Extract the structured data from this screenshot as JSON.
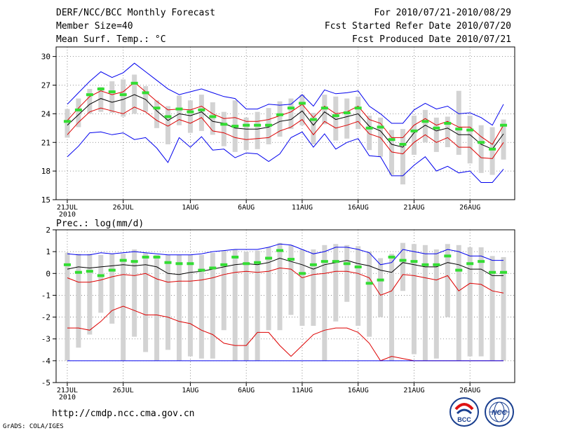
{
  "header": {
    "title": "DERF/NCC/BCC Monthly Forecast",
    "member_size": "Member Size=40",
    "variable1": "Mean Surf. Temp.: °C",
    "forecast_range": "For 2010/07/21-2010/08/29",
    "started_date": "Fcst Started Refer Date 2010/07/20",
    "produced_date": "Fcst Produced Date 2010/07/21"
  },
  "footer": {
    "url": "http://cmdp.ncc.cma.gov.cn",
    "grads_credit": "GrADS: COLA/IGES",
    "logo_left_text": "BCC",
    "logo_right_text": "NCC"
  },
  "colors": {
    "box": "#d3d3d3",
    "obs": "#33dd33",
    "blue": "#0000ee",
    "red": "#dd0000",
    "mean": "#000000",
    "grid": "#777777"
  },
  "chart_data": [
    {
      "type": "line",
      "title": "Mean Surf. Temp.: °C",
      "xlabel": "",
      "ylabel": "°C",
      "ylim": [
        15,
        31
      ],
      "yticks": [
        15,
        18,
        21,
        24,
        27,
        30
      ],
      "x_tick_labels": [
        "21JUL",
        "26JUL",
        "1AUG",
        "6AUG",
        "11AUG",
        "16AUG",
        "21AUG",
        "26AUG"
      ],
      "x_tick_index": [
        0,
        5,
        11,
        16,
        21,
        26,
        31,
        36
      ],
      "year_label": "2010",
      "n_days": 40,
      "grid": true,
      "series": [
        {
          "name": "max",
          "color": "blue",
          "values": [
            25.0,
            26.2,
            27.4,
            28.4,
            27.8,
            28.3,
            29.3,
            28.4,
            27.5,
            26.6,
            26.0,
            26.3,
            26.6,
            26.2,
            25.8,
            25.6,
            24.5,
            24.5,
            25.0,
            24.9,
            25.0,
            26.0,
            24.8,
            26.5,
            26.1,
            26.2,
            26.4,
            24.8,
            24.0,
            23.0,
            23.0,
            24.4,
            25.1,
            24.5,
            24.8,
            24.0,
            24.1,
            23.6,
            22.8,
            25.0
          ]
        },
        {
          "name": "p90",
          "color": "red",
          "values": [
            23.3,
            24.6,
            25.8,
            26.4,
            26.0,
            26.3,
            27.3,
            26.3,
            25.3,
            24.4,
            24.5,
            24.4,
            24.8,
            24.0,
            23.5,
            23.6,
            23.2,
            23.2,
            23.4,
            23.8,
            24.2,
            25.0,
            23.6,
            24.8,
            24.0,
            24.2,
            24.8,
            23.4,
            23.0,
            21.5,
            21.5,
            22.8,
            23.5,
            22.8,
            23.2,
            22.6,
            22.6,
            21.6,
            20.8,
            22.8
          ]
        },
        {
          "name": "mean",
          "color": "mean",
          "values": [
            22.8,
            23.9,
            25.0,
            25.6,
            25.2,
            25.5,
            26.0,
            25.5,
            24.3,
            23.3,
            24.0,
            23.8,
            24.2,
            23.2,
            23.0,
            22.5,
            22.4,
            22.4,
            22.6,
            23.2,
            23.4,
            24.3,
            22.8,
            24.2,
            23.4,
            23.7,
            24.0,
            22.7,
            22.2,
            20.8,
            20.5,
            22.0,
            22.8,
            22.2,
            22.5,
            21.8,
            21.8,
            20.8,
            20.3,
            21.9
          ]
        },
        {
          "name": "p10",
          "color": "red",
          "values": [
            21.8,
            23.1,
            24.2,
            24.6,
            24.3,
            24.0,
            24.7,
            24.2,
            23.3,
            22.7,
            23.4,
            23.0,
            23.6,
            22.2,
            22.0,
            21.5,
            21.3,
            21.4,
            21.5,
            22.2,
            22.6,
            23.4,
            21.8,
            23.2,
            22.5,
            22.8,
            23.2,
            21.9,
            21.5,
            20.0,
            19.8,
            21.0,
            21.8,
            21.0,
            21.5,
            20.5,
            20.5,
            19.4,
            19.3,
            21.0
          ]
        },
        {
          "name": "min",
          "color": "blue",
          "values": [
            19.5,
            20.6,
            22.0,
            22.1,
            21.8,
            22.0,
            21.3,
            21.5,
            20.4,
            18.9,
            21.5,
            20.5,
            21.6,
            20.2,
            20.3,
            19.4,
            19.9,
            19.8,
            19.0,
            19.8,
            21.5,
            22.1,
            20.5,
            21.9,
            20.3,
            21.0,
            21.4,
            19.6,
            19.5,
            17.5,
            17.5,
            18.6,
            19.5,
            18.0,
            18.5,
            17.8,
            18.0,
            16.8,
            16.8,
            18.2
          ]
        }
      ],
      "box_low": [
        21.5,
        22.6,
        24.0,
        24.2,
        24.1,
        23.7,
        24.0,
        24.2,
        22.5,
        20.8,
        22.8,
        22.0,
        22.2,
        21.8,
        20.6,
        20.0,
        20.2,
        20.3,
        20.8,
        21.6,
        22.4,
        22.8,
        20.8,
        22.9,
        21.2,
        21.4,
        22.4,
        20.2,
        19.5,
        17.6,
        16.6,
        19.7,
        21.0,
        20.0,
        20.5,
        19.7,
        18.8,
        17.8,
        17.6,
        19.2
      ],
      "box_high": [
        24.5,
        25.6,
        26.6,
        26.8,
        27.4,
        27.6,
        28.1,
        26.9,
        25.4,
        24.8,
        25.9,
        25.4,
        26.0,
        25.2,
        24.2,
        25.4,
        23.6,
        24.2,
        24.6,
        25.3,
        25.6,
        26.0,
        24.1,
        26.0,
        25.8,
        25.6,
        25.8,
        23.8,
        23.6,
        22.3,
        22.4,
        23.8,
        24.4,
        23.6,
        23.7,
        26.4,
        23.8,
        22.8,
        22.6,
        23.4
      ],
      "observed": [
        23.2,
        24.4,
        26.0,
        26.6,
        26.3,
        26.0,
        27.2,
        26.2,
        24.6,
        23.7,
        24.5,
        24.2,
        24.4,
        23.7,
        22.9,
        22.7,
        22.8,
        22.8,
        22.8,
        23.9,
        24.6,
        25.1,
        23.4,
        24.6,
        23.8,
        24.1,
        24.6,
        22.5,
        22.6,
        21.3,
        20.8,
        22.2,
        23.2,
        22.5,
        23.0,
        22.4,
        22.3,
        21.0,
        20.3,
        22.8
      ]
    },
    {
      "type": "line",
      "title": "Prec.: log(mm/d)",
      "xlabel": "",
      "ylabel": "log(mm/d)",
      "ylim": [
        -5,
        2
      ],
      "yticks": [
        -5,
        -4,
        -3,
        -2,
        -1,
        0,
        1,
        2
      ],
      "x_tick_labels": [
        "21JUL",
        "26JUL",
        "1AUG",
        "6AUG",
        "11AUG",
        "16AUG",
        "21AUG",
        "26AUG"
      ],
      "x_tick_index": [
        0,
        5,
        11,
        16,
        21,
        26,
        31,
        36
      ],
      "year_label": "2010",
      "n_days": 40,
      "grid": true,
      "series": [
        {
          "name": "max",
          "color": "blue",
          "values": [
            0.9,
            0.85,
            0.85,
            0.95,
            0.9,
            0.95,
            1.0,
            0.95,
            0.9,
            0.85,
            0.85,
            0.85,
            0.9,
            1.0,
            1.05,
            1.1,
            1.1,
            1.1,
            1.2,
            1.35,
            1.3,
            1.1,
            0.9,
            1.0,
            1.2,
            1.2,
            1.1,
            0.95,
            0.4,
            0.5,
            1.1,
            1.0,
            0.9,
            0.9,
            1.1,
            1.0,
            0.8,
            0.8,
            0.6,
            0.6
          ]
        },
        {
          "name": "p90",
          "color": "mean",
          "values": [
            0.2,
            0.3,
            0.25,
            0.3,
            0.35,
            0.4,
            0.35,
            0.4,
            0.3,
            0.0,
            -0.05,
            0.05,
            0.1,
            0.2,
            0.3,
            0.4,
            0.45,
            0.4,
            0.5,
            0.7,
            0.55,
            0.4,
            0.2,
            0.4,
            0.5,
            0.6,
            0.45,
            0.35,
            0.15,
            0.05,
            0.5,
            0.4,
            0.3,
            0.3,
            0.5,
            0.4,
            0.2,
            0.2,
            -0.1,
            -0.1
          ]
        },
        {
          "name": "p10",
          "color": "red",
          "values": [
            -0.2,
            -0.4,
            -0.4,
            -0.3,
            -0.15,
            -0.05,
            -0.1,
            0.0,
            -0.25,
            -0.4,
            -0.35,
            -0.35,
            -0.3,
            -0.2,
            -0.05,
            0.05,
            0.1,
            0.05,
            0.1,
            0.25,
            0.2,
            -0.2,
            -0.05,
            0.0,
            0.1,
            0.1,
            0.0,
            -0.2,
            -1.0,
            -0.8,
            -0.05,
            -0.1,
            -0.2,
            -0.3,
            -0.1,
            -0.8,
            -0.45,
            -0.5,
            -0.8,
            -0.9
          ]
        },
        {
          "name": "min",
          "color": "red",
          "values": [
            -2.5,
            -2.5,
            -2.6,
            -2.2,
            -1.7,
            -1.5,
            -1.7,
            -1.9,
            -1.9,
            -2.0,
            -2.2,
            -2.3,
            -2.6,
            -2.8,
            -3.2,
            -3.3,
            -3.3,
            -2.7,
            -2.7,
            -3.3,
            -3.8,
            -3.3,
            -2.8,
            -2.6,
            -2.5,
            -2.5,
            -2.7,
            -3.2,
            -4.0,
            -3.8,
            -3.9,
            -4.0,
            -4.0,
            -4.0,
            -4.0,
            -4.0,
            -4.0,
            -4.0,
            -4.0,
            -4.0
          ]
        },
        {
          "name": "floor",
          "color": "blue",
          "values": [
            -4.0,
            -4.0,
            -4.0,
            -4.0,
            -4.0,
            -4.0,
            -4.0,
            -4.0,
            -4.0,
            -4.0,
            -4.0,
            -4.0,
            -4.0,
            -4.0,
            -4.0,
            -4.0,
            -4.0,
            -4.0,
            -4.0,
            -4.0,
            -4.0,
            -4.0,
            -4.0,
            -4.0,
            -4.0,
            -4.0,
            -4.0,
            -4.0,
            -4.0,
            -4.0,
            -4.0,
            -4.0,
            -4.0,
            -4.0,
            -4.0,
            -4.0,
            -4.0,
            -4.0,
            -4.0,
            -4.0
          ]
        }
      ],
      "box_low": [
        -4.0,
        -3.4,
        -2.8,
        -1.8,
        -2.3,
        -4.0,
        -2.9,
        -3.6,
        -4.0,
        -3.5,
        -4.0,
        -3.8,
        -3.9,
        -3.9,
        -2.6,
        -4.0,
        -4.0,
        -4.0,
        -2.6,
        -2.6,
        -1.9,
        -2.4,
        -2.4,
        -4.0,
        -2.2,
        -1.3,
        -2.4,
        -2.9,
        -2.0,
        -4.0,
        -0.8,
        -3.7,
        -4.0,
        -3.9,
        -2.0,
        -4.0,
        -3.8,
        -3.8,
        -4.0,
        -4.0
      ],
      "box_high": [
        0.95,
        0.9,
        0.9,
        0.85,
        0.9,
        0.9,
        1.1,
        0.95,
        0.85,
        0.85,
        0.85,
        0.85,
        0.85,
        0.95,
        1.05,
        1.1,
        1.0,
        1.05,
        1.2,
        1.4,
        1.3,
        1.1,
        1.1,
        1.3,
        1.35,
        1.3,
        1.25,
        1.0,
        0.7,
        0.9,
        1.4,
        1.35,
        1.3,
        1.1,
        1.35,
        1.3,
        1.2,
        1.2,
        0.8,
        0.75
      ],
      "observed": [
        0.4,
        0.05,
        0.1,
        -0.1,
        0.15,
        0.6,
        0.55,
        0.75,
        0.75,
        0.5,
        0.45,
        0.45,
        0.15,
        0.25,
        0.4,
        0.75,
        0.45,
        0.5,
        0.7,
        1.05,
        0.65,
        0.0,
        0.4,
        0.55,
        0.55,
        0.45,
        0.3,
        -0.45,
        -0.3,
        0.75,
        0.6,
        0.55,
        0.4,
        0.4,
        0.8,
        0.15,
        0.45,
        0.55,
        0.05,
        0.05
      ]
    }
  ]
}
